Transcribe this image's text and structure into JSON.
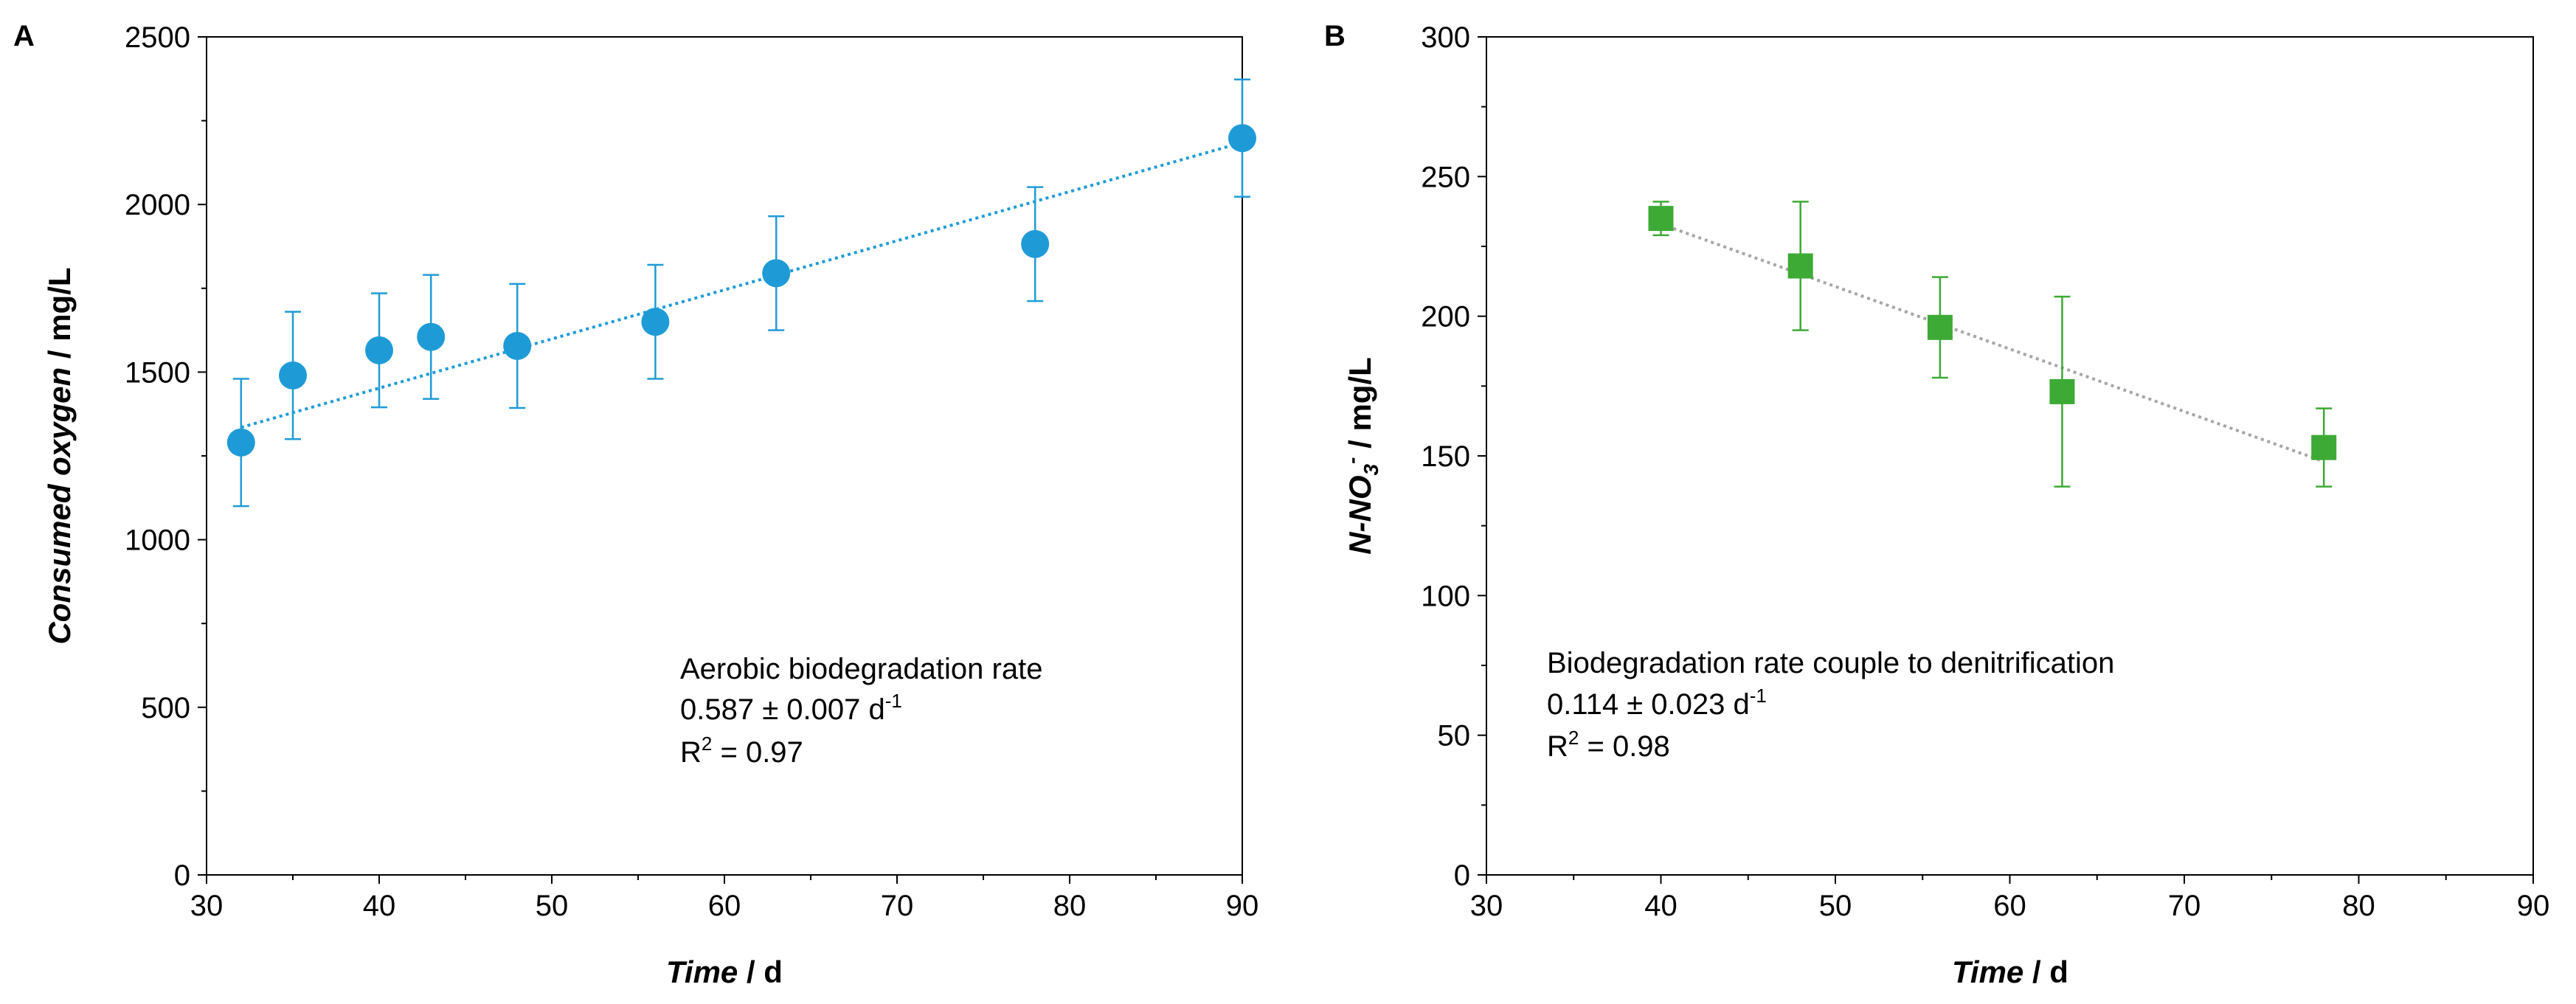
{
  "chart_data": [
    {
      "panel_label": "A",
      "type": "scatter",
      "xlabel_italic": "Time",
      "xlabel_unit": " / d",
      "ylabel_italic": "Consumed oxygen",
      "ylabel_unit": " / mg/L",
      "xlim": [
        30,
        90
      ],
      "ylim": [
        0,
        2500
      ],
      "xticks": [
        30,
        40,
        50,
        60,
        70,
        80,
        90
      ],
      "yticks": [
        0,
        500,
        1000,
        1500,
        2000,
        2500
      ],
      "marker": "circle",
      "color": "#1E9BD7",
      "trend_color": "#1E9BD7",
      "points": [
        {
          "x": 32,
          "y": 1290,
          "err": 190
        },
        {
          "x": 35,
          "y": 1490,
          "err": 190
        },
        {
          "x": 40,
          "y": 1565,
          "err": 170
        },
        {
          "x": 43,
          "y": 1605,
          "err": 185
        },
        {
          "x": 48,
          "y": 1578,
          "err": 185
        },
        {
          "x": 56,
          "y": 1650,
          "err": 170
        },
        {
          "x": 63,
          "y": 1795,
          "err": 170
        },
        {
          "x": 78,
          "y": 1882,
          "err": 170
        },
        {
          "x": 90,
          "y": 2198,
          "err": 175
        }
      ],
      "trendline": {
        "x": [
          32,
          90
        ],
        "y": [
          1335,
          2185
        ]
      },
      "annotation": {
        "line1": "Aerobic biodegradation rate",
        "line2_value": "0.587 ± 0.007 d",
        "line2_sup": "-1",
        "line3_pre": "R",
        "line3_sup": "2",
        "line3_post": " = 0.97"
      }
    },
    {
      "panel_label": "B",
      "type": "scatter",
      "xlabel_italic": "Time",
      "xlabel_unit": " / d",
      "ylabel_italic": "N-NO",
      "ylabel_sub": "3",
      "ylabel_sup": "-",
      "ylabel_unit": " / mg/L",
      "xlim": [
        30,
        90
      ],
      "ylim": [
        0,
        300
      ],
      "xticks": [
        30,
        40,
        50,
        60,
        70,
        80,
        90
      ],
      "yticks": [
        0,
        50,
        100,
        150,
        200,
        250,
        300
      ],
      "marker": "square",
      "color": "#3DAA35",
      "trend_color": "#A6A6A6",
      "points": [
        {
          "x": 40,
          "y": 235,
          "err": 6
        },
        {
          "x": 48,
          "y": 218,
          "err": 23
        },
        {
          "x": 56,
          "y": 196,
          "err": 18
        },
        {
          "x": 63,
          "y": 173,
          "err": 34
        },
        {
          "x": 78,
          "y": 153,
          "err": 14
        }
      ],
      "trendline": {
        "x": [
          40,
          78
        ],
        "y": [
          233,
          148
        ]
      },
      "annotation": {
        "line1": "Biodegradation rate couple to denitrification",
        "line2_value": "0.114 ± 0.023 d",
        "line2_sup": "-1",
        "line3_pre": "R",
        "line3_sup": "2",
        "line3_post": " = 0.98"
      }
    }
  ]
}
